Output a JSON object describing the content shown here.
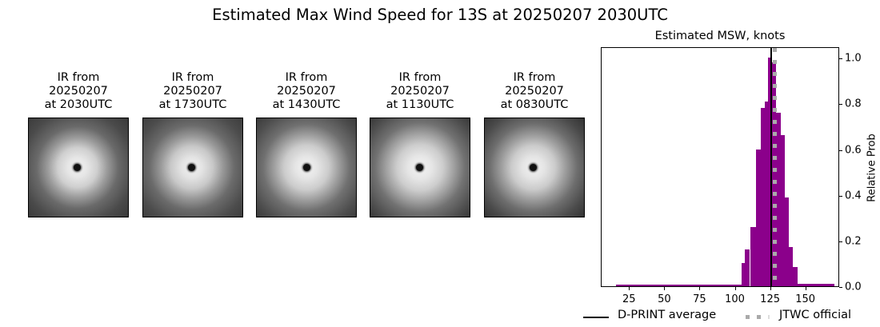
{
  "figure": {
    "suptitle": "Estimated Max Wind Speed for 13S at 20250207 2030UTC"
  },
  "ir_panels": [
    {
      "caption": "IR from\n20250207\nat 2030UTC"
    },
    {
      "caption": "IR from\n20250207\nat 1730UTC"
    },
    {
      "caption": "IR from\n20250207\nat 1430UTC"
    },
    {
      "caption": "IR from\n20250207\nat 1130UTC"
    },
    {
      "caption": "IR from\n20250207\nat 0830UTC"
    }
  ],
  "chart_data": {
    "type": "bar",
    "title": "Estimated MSW, knots",
    "xlabel": "",
    "ylabel": "Relative Prob",
    "xlim": [
      5,
      174
    ],
    "ylim": [
      0,
      1.05
    ],
    "xticks": [
      25,
      50,
      75,
      100,
      125,
      150
    ],
    "xtick_labels": [
      "25",
      "50",
      "75",
      "100",
      "125",
      "150"
    ],
    "yticks": [
      0.0,
      0.2,
      0.4,
      0.6,
      0.8,
      1.0
    ],
    "ytick_labels": [
      "0.0",
      "0.2",
      "0.4",
      "0.6",
      "0.8",
      "1.0"
    ],
    "y_axis_side": "right",
    "grid": false,
    "bar_color": "#8b008b",
    "bins": [
      {
        "x0": 15,
        "x1": 104.5,
        "value": 0.007
      },
      {
        "x0": 104.5,
        "x1": 106.4,
        "value": 0.1
      },
      {
        "x0": 106.4,
        "x1": 110.2,
        "value": 0.16
      },
      {
        "x0": 110.2,
        "x1": 114.2,
        "value": 0.26
      },
      {
        "x0": 114.2,
        "x1": 117.6,
        "value": 0.6
      },
      {
        "x0": 117.6,
        "x1": 120.6,
        "value": 0.78
      },
      {
        "x0": 120.6,
        "x1": 122.9,
        "value": 0.81
      },
      {
        "x0": 122.9,
        "x1": 125.8,
        "value": 1.0
      },
      {
        "x0": 125.8,
        "x1": 128.9,
        "value": 0.98
      },
      {
        "x0": 128.9,
        "x1": 131.8,
        "value": 0.76
      },
      {
        "x0": 131.8,
        "x1": 134.7,
        "value": 0.66
      },
      {
        "x0": 134.7,
        "x1": 137.5,
        "value": 0.39
      },
      {
        "x0": 137.5,
        "x1": 140.7,
        "value": 0.17
      },
      {
        "x0": 140.7,
        "x1": 143.8,
        "value": 0.085
      },
      {
        "x0": 143.8,
        "x1": 170,
        "value": 0.01
      }
    ],
    "reference_lines": [
      {
        "name": "D-PRINT average",
        "x": 125,
        "style": "solid",
        "color": "#000000"
      },
      {
        "name": "JTWC official",
        "x": 127.5,
        "style": "dotted",
        "color": "#aaaaaa"
      }
    ],
    "legend": {
      "position": "bottom",
      "entries": [
        "D-PRINT average",
        "JTWC official"
      ]
    }
  }
}
